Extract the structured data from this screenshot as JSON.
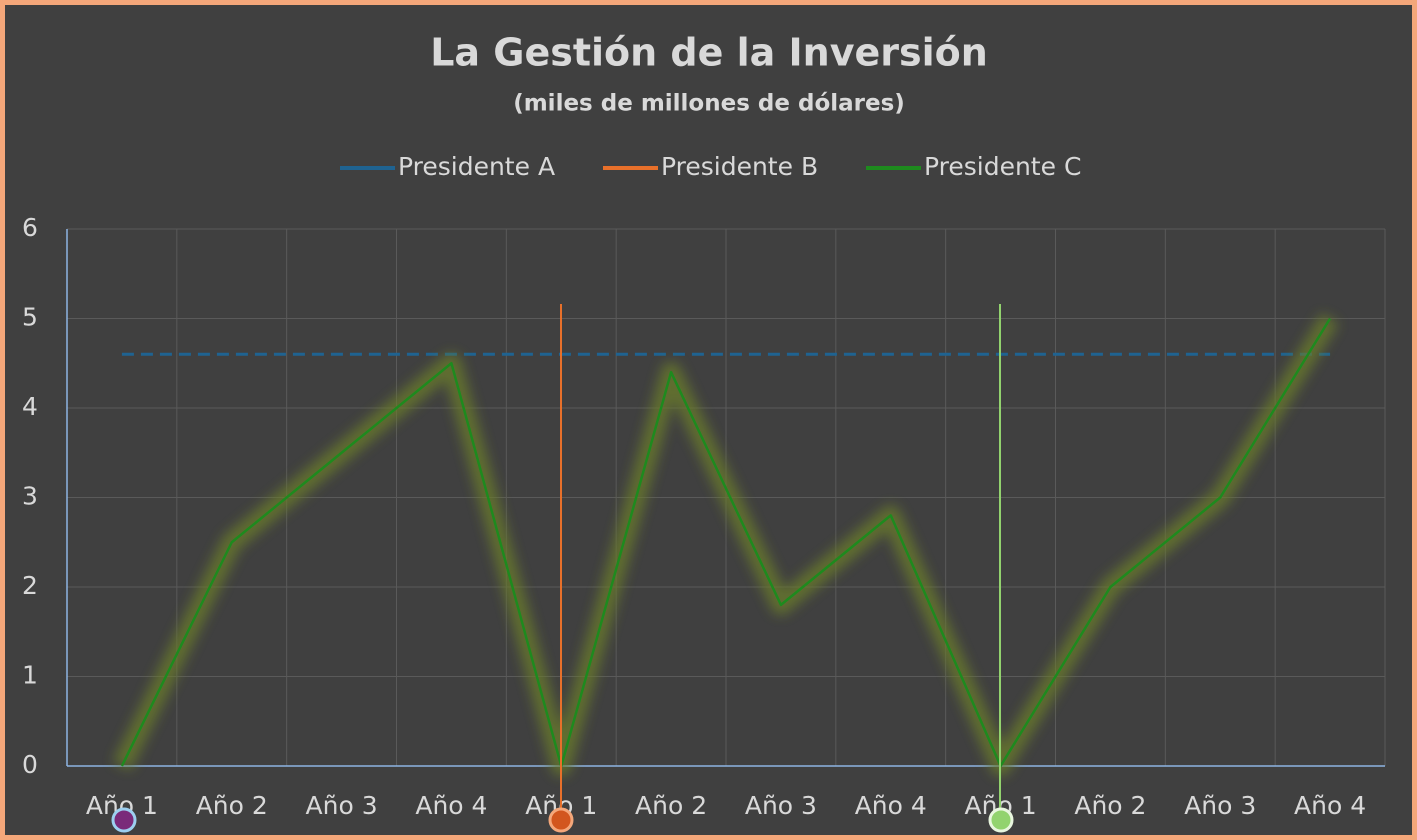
{
  "chart_data": {
    "type": "line",
    "title": "La Gestión de la Inversión",
    "subtitle": "(miles de millones de dólares)",
    "categories": [
      "Año 1",
      "Año 2",
      "Año 3",
      "Año 4",
      "Año 1",
      "Año 2",
      "Año 3",
      "Año 4",
      "Año 1",
      "Año 2",
      "Año 3",
      "Año 4"
    ],
    "series": [
      {
        "name": "Presidente A",
        "color": "#1f6391",
        "dashed": true,
        "values": [
          4.6,
          4.6,
          4.6,
          4.6,
          4.6,
          4.6,
          4.6,
          4.6,
          4.6,
          4.6,
          4.6,
          4.6
        ]
      },
      {
        "name": "Presidente B",
        "color": "#e8702a",
        "values": [
          null,
          null,
          null,
          null,
          null,
          null,
          null,
          null,
          null,
          null,
          null,
          null
        ]
      },
      {
        "name": "Presidente C",
        "color": "#1e8a1e",
        "glow": true,
        "values": [
          0,
          2.5,
          3.5,
          4.5,
          0,
          4.4,
          1.8,
          2.8,
          0,
          2,
          3,
          5
        ]
      }
    ],
    "ylim": [
      0,
      6
    ],
    "yticks": [
      0,
      1,
      2,
      3,
      4,
      5,
      6
    ],
    "grid": true,
    "legend": "top"
  }
}
